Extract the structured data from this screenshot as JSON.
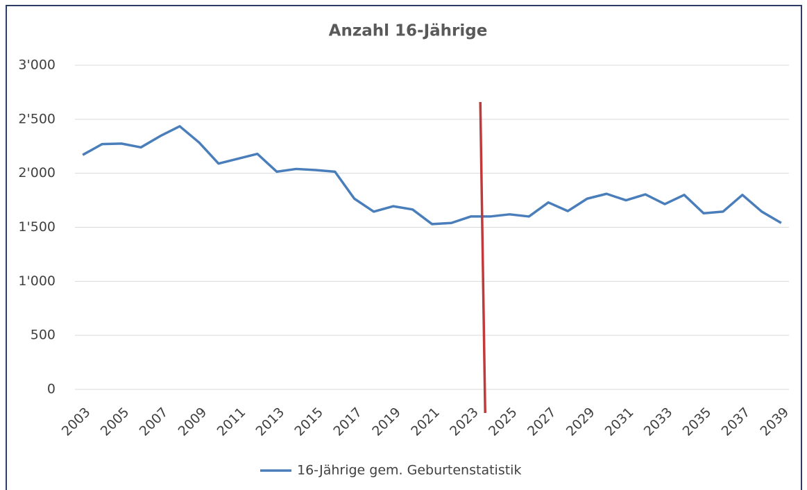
{
  "chart_data": {
    "type": "line",
    "title": "Anzahl 16-Jährige",
    "x": [
      2003,
      2004,
      2005,
      2006,
      2007,
      2008,
      2009,
      2010,
      2011,
      2012,
      2013,
      2014,
      2015,
      2016,
      2017,
      2018,
      2019,
      2020,
      2021,
      2022,
      2023,
      2024,
      2025,
      2026,
      2027,
      2028,
      2029,
      2030,
      2031,
      2032,
      2033,
      2034,
      2035,
      2036,
      2037,
      2038,
      2039
    ],
    "series": [
      {
        "name": "16-Jährige gem. Geburtenstatistik",
        "color": "#4a7ebb",
        "values": [
          2170,
          2270,
          2275,
          2240,
          2345,
          2435,
          2285,
          2090,
          2135,
          2180,
          2015,
          2040,
          2030,
          2015,
          1765,
          1645,
          1695,
          1665,
          1530,
          1540,
          1600,
          1600,
          1620,
          1600,
          1730,
          1650,
          1765,
          1810,
          1750,
          1805,
          1715,
          1800,
          1630,
          1645,
          1800,
          1645,
          1540
        ]
      }
    ],
    "xlim": [
      2002.6,
      2039.4
    ],
    "xticks": [
      2003,
      2005,
      2007,
      2009,
      2011,
      2013,
      2015,
      2017,
      2019,
      2021,
      2023,
      2025,
      2027,
      2029,
      2031,
      2033,
      2035,
      2037,
      2039
    ],
    "ylim": [
      0,
      3000
    ],
    "yticks": [
      0,
      500,
      {
        "value": 1000,
        "label": "1'000"
      },
      {
        "value": 1500,
        "label": "1'500"
      },
      {
        "value": 2000,
        "label": "2'000"
      },
      {
        "value": 2500,
        "label": "2'500"
      },
      {
        "value": 3000,
        "label": "3'000"
      }
    ],
    "grid": true,
    "legend": "bottom",
    "vline": {
      "x": 2023.6,
      "color": "#c0393b"
    }
  }
}
